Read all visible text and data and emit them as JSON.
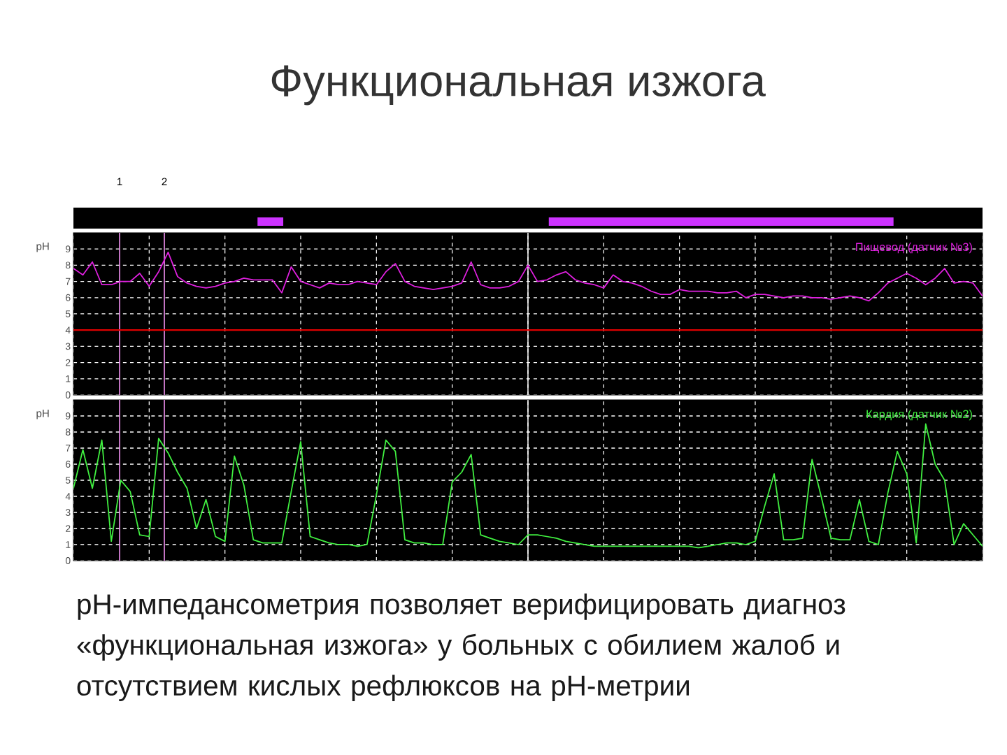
{
  "chart_data": [
    {
      "type": "line",
      "title": "Функциональная изжога",
      "ylabel": "pH",
      "ylim": [
        0,
        10
      ],
      "categories": [
        null,
        null,
        null,
        null,
        null,
        null,
        null,
        null,
        null,
        null,
        null,
        null,
        null,
        null,
        null,
        null,
        null,
        null,
        null,
        null,
        null,
        null,
        null,
        null,
        null,
        null,
        null,
        null,
        null,
        null,
        null,
        null,
        null,
        null,
        null,
        null,
        null,
        null,
        null,
        null,
        null,
        null,
        null,
        null,
        null,
        null,
        null,
        null,
        null,
        null,
        null,
        null,
        null,
        null,
        null,
        null,
        null,
        null,
        null,
        null,
        null,
        null,
        null,
        null,
        null,
        null,
        null,
        null,
        null,
        null,
        null,
        null,
        null,
        null,
        null,
        null,
        null,
        null,
        null,
        null,
        null,
        null,
        null,
        null,
        null,
        null,
        null,
        null,
        null,
        null,
        null,
        null,
        null,
        null,
        null,
        null,
        null
      ],
      "yticks": [
        0,
        1,
        2,
        3,
        4,
        5,
        6,
        7,
        8,
        9
      ],
      "grid": true,
      "tick_labels": "y",
      "marker": "none",
      "series": [
        {
          "name": "Пищевод (датчик №3)",
          "color": "#e020e0",
          "values": [
            7.8,
            7.4,
            8.2,
            6.8,
            6.8,
            7.0,
            7.0,
            7.5,
            6.7,
            7.6,
            8.8,
            7.3,
            6.9,
            6.7,
            6.6,
            6.7,
            6.9,
            7.0,
            7.2,
            7.1,
            7.1,
            7.1,
            6.3,
            7.9,
            7.0,
            6.8,
            6.6,
            6.9,
            6.8,
            6.8,
            7.0,
            6.9,
            6.8,
            7.6,
            8.1,
            7.0,
            6.7,
            6.6,
            6.5,
            6.6,
            6.7,
            6.9,
            8.2,
            6.8,
            6.6,
            6.6,
            6.7,
            7.0,
            8.0,
            7.0,
            7.1,
            7.4,
            7.6,
            7.1,
            6.9,
            6.8,
            6.6,
            7.4,
            7.0,
            6.9,
            6.7,
            6.4,
            6.2,
            6.2,
            6.5,
            6.4,
            6.4,
            6.4,
            6.3,
            6.3,
            6.4,
            6.0,
            6.2,
            6.2,
            6.1,
            6.0,
            6.1,
            6.1,
            6.0,
            6.0,
            5.9,
            6.0,
            6.1,
            6.0,
            5.8,
            6.3,
            6.9,
            7.2,
            7.5,
            7.2,
            6.8,
            7.2,
            7.8,
            6.9,
            7.0,
            6.9,
            6.1
          ]
        }
      ],
      "ref_lines": [
        {
          "axis": "y",
          "value": 4,
          "color": "#e00000"
        }
      ],
      "annotations": [
        "1",
        "2"
      ]
    },
    {
      "type": "line",
      "ylabel": "pH",
      "ylim": [
        0,
        10
      ],
      "categories": [
        null,
        null,
        null,
        null,
        null,
        null,
        null,
        null,
        null,
        null,
        null,
        null,
        null,
        null,
        null,
        null,
        null,
        null,
        null,
        null,
        null,
        null,
        null,
        null,
        null,
        null,
        null,
        null,
        null,
        null,
        null,
        null,
        null,
        null,
        null,
        null,
        null,
        null,
        null,
        null,
        null,
        null,
        null,
        null,
        null,
        null,
        null,
        null,
        null,
        null,
        null,
        null,
        null,
        null,
        null,
        null,
        null,
        null,
        null,
        null,
        null,
        null,
        null,
        null,
        null,
        null,
        null,
        null,
        null,
        null,
        null,
        null,
        null,
        null,
        null,
        null,
        null,
        null,
        null,
        null,
        null,
        null,
        null,
        null,
        null,
        null,
        null,
        null,
        null,
        null,
        null,
        null,
        null,
        null,
        null,
        null,
        null
      ],
      "yticks": [
        0,
        1,
        2,
        3,
        4,
        5,
        6,
        7,
        8,
        9
      ],
      "grid": true,
      "tick_labels": "y",
      "marker": "none",
      "annotations": [
        "pH-импедансометрия позволяет верифицировать диагноз «функциональная изжога» у больных с обилием жалоб и отсутствием кислых рефлюксов на pH-метрии"
      ],
      "series": [
        {
          "name": "Кардия (датчик №2)",
          "color": "#40f040",
          "values": [
            4.5,
            6.9,
            4.5,
            7.5,
            1.2,
            5.0,
            4.3,
            1.6,
            1.5,
            7.6,
            6.7,
            5.5,
            4.5,
            2.0,
            3.8,
            1.5,
            1.2,
            6.5,
            4.7,
            1.3,
            1.1,
            1.1,
            1.1,
            4.3,
            7.4,
            1.5,
            1.3,
            1.1,
            1.0,
            1.0,
            0.9,
            1.0,
            4.1,
            7.5,
            6.8,
            1.3,
            1.1,
            1.1,
            1.0,
            1.0,
            4.9,
            5.5,
            6.6,
            1.6,
            1.4,
            1.2,
            1.1,
            1.0,
            1.6,
            1.6,
            1.5,
            1.4,
            1.2,
            1.1,
            1.0,
            0.9,
            0.9,
            0.9,
            0.9,
            0.9,
            0.9,
            0.9,
            0.9,
            0.9,
            0.9,
            0.9,
            0.8,
            0.9,
            1.0,
            1.1,
            1.1,
            1.0,
            1.2,
            3.4,
            5.4,
            1.3,
            1.3,
            1.4,
            6.3,
            3.9,
            1.4,
            1.3,
            1.3,
            3.8,
            1.2,
            1.0,
            4.2,
            6.8,
            5.4,
            1.1,
            8.5,
            6.0,
            5.0,
            1.0,
            2.3,
            1.6,
            0.9
          ]
        }
      ]
    }
  ]
}
